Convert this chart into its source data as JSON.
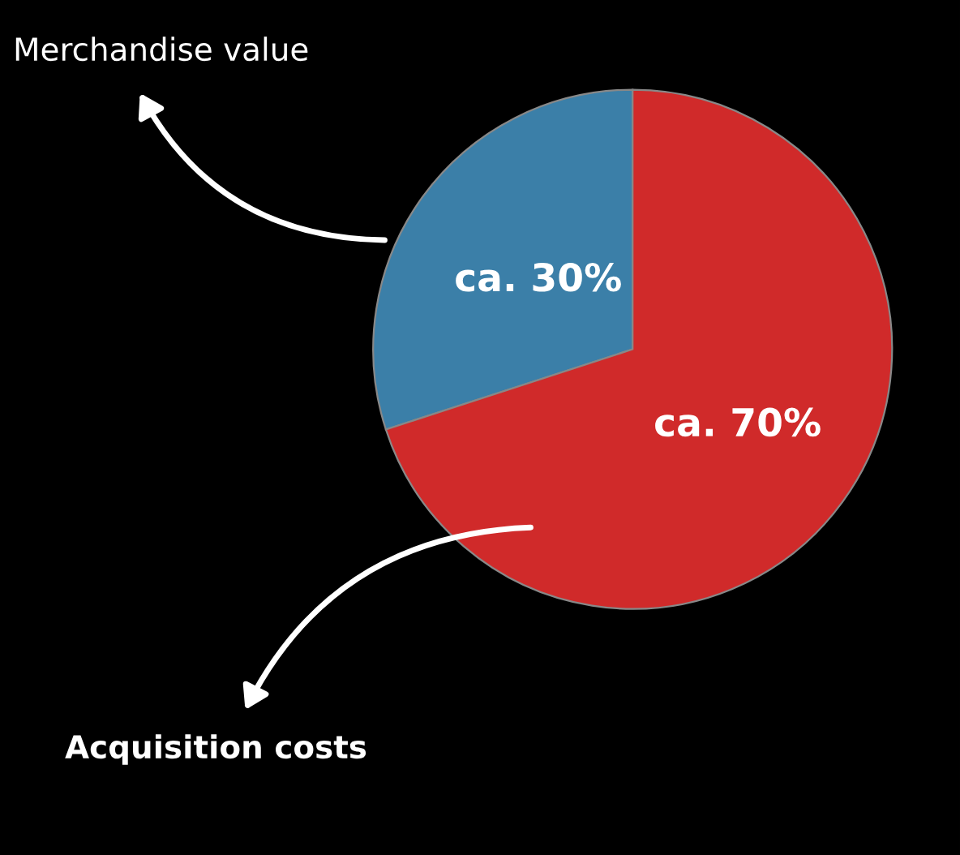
{
  "chart_data": {
    "type": "pie",
    "categories": [
      "Merchandise value",
      "Acquisition costs"
    ],
    "values": [
      30,
      70
    ],
    "colors": [
      "#3b7fa8",
      "#d02a2a"
    ],
    "value_labels": [
      "ca. 30%",
      "ca. 70%"
    ]
  }
}
